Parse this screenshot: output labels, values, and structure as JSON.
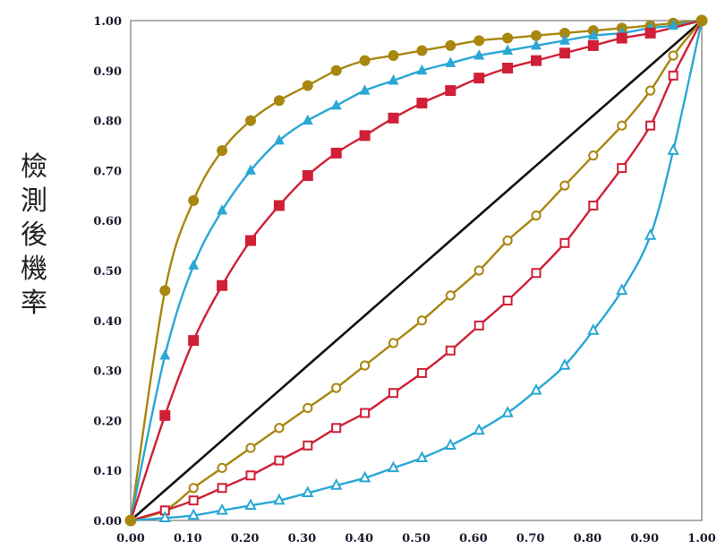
{
  "chart_data": {
    "type": "line",
    "title": "",
    "xlabel": "",
    "ylabel": "檢測後機率",
    "xlim": [
      0,
      1
    ],
    "ylim": [
      0,
      1
    ],
    "grid": false,
    "legend": "none",
    "x_ticks": [
      "0.00",
      "0.10",
      "0.20",
      "0.30",
      "0.40",
      "0.50",
      "0.60",
      "0.70",
      "0.80",
      "0.90",
      "1.00"
    ],
    "y_ticks": [
      "0.00",
      "0.10",
      "0.20",
      "0.30",
      "0.40",
      "0.50",
      "0.60",
      "0.70",
      "0.80",
      "0.90",
      "1.00"
    ],
    "x": [
      0.0,
      0.06,
      0.11,
      0.16,
      0.21,
      0.26,
      0.31,
      0.36,
      0.41,
      0.46,
      0.51,
      0.56,
      0.61,
      0.66,
      0.71,
      0.76,
      0.81,
      0.86,
      0.91,
      0.95,
      1.0
    ],
    "series": [
      {
        "marker": "circle-filled",
        "color": "#a8860f",
        "values": [
          0.0,
          0.46,
          0.64,
          0.74,
          0.8,
          0.84,
          0.87,
          0.9,
          0.92,
          0.93,
          0.94,
          0.95,
          0.96,
          0.965,
          0.97,
          0.975,
          0.98,
          0.985,
          0.99,
          0.995,
          1.0
        ]
      },
      {
        "marker": "triangle-filled",
        "color": "#2aa7d5",
        "values": [
          0.0,
          0.33,
          0.51,
          0.62,
          0.7,
          0.76,
          0.8,
          0.83,
          0.86,
          0.88,
          0.9,
          0.915,
          0.93,
          0.94,
          0.95,
          0.96,
          0.97,
          0.975,
          0.985,
          0.99,
          1.0
        ]
      },
      {
        "marker": "square-filled",
        "color": "#d01f36",
        "values": [
          0.0,
          0.21,
          0.36,
          0.47,
          0.56,
          0.63,
          0.69,
          0.735,
          0.77,
          0.805,
          0.835,
          0.86,
          0.885,
          0.905,
          0.92,
          0.935,
          0.95,
          0.965,
          0.975,
          null,
          1.0
        ]
      },
      {
        "marker": "none",
        "color": "#111111",
        "values": [
          0.0,
          0.06,
          0.11,
          0.16,
          0.21,
          0.26,
          0.31,
          0.36,
          0.41,
          0.46,
          0.51,
          0.56,
          0.61,
          0.66,
          0.71,
          0.76,
          0.81,
          0.86,
          0.91,
          0.95,
          1.0
        ]
      },
      {
        "marker": "circle-open",
        "color": "#a8860f",
        "values": [
          0.0,
          0.02,
          0.065,
          0.105,
          0.145,
          0.185,
          0.225,
          0.265,
          0.31,
          0.355,
          0.4,
          0.45,
          0.5,
          0.56,
          0.61,
          0.67,
          0.73,
          0.79,
          0.86,
          0.93,
          1.0
        ]
      },
      {
        "marker": "square-open",
        "color": "#d01f36",
        "values": [
          0.0,
          0.02,
          0.04,
          0.065,
          0.09,
          0.12,
          0.15,
          0.185,
          0.215,
          0.255,
          0.295,
          0.34,
          0.39,
          0.44,
          0.495,
          0.555,
          0.63,
          0.705,
          0.79,
          0.89,
          1.0
        ]
      },
      {
        "marker": "triangle-open",
        "color": "#2aa7d5",
        "values": [
          0.0,
          0.005,
          0.01,
          0.02,
          0.03,
          0.04,
          0.055,
          0.07,
          0.085,
          0.105,
          0.125,
          0.15,
          0.18,
          0.215,
          0.26,
          0.31,
          0.38,
          0.46,
          0.57,
          0.74,
          1.0
        ]
      }
    ]
  }
}
